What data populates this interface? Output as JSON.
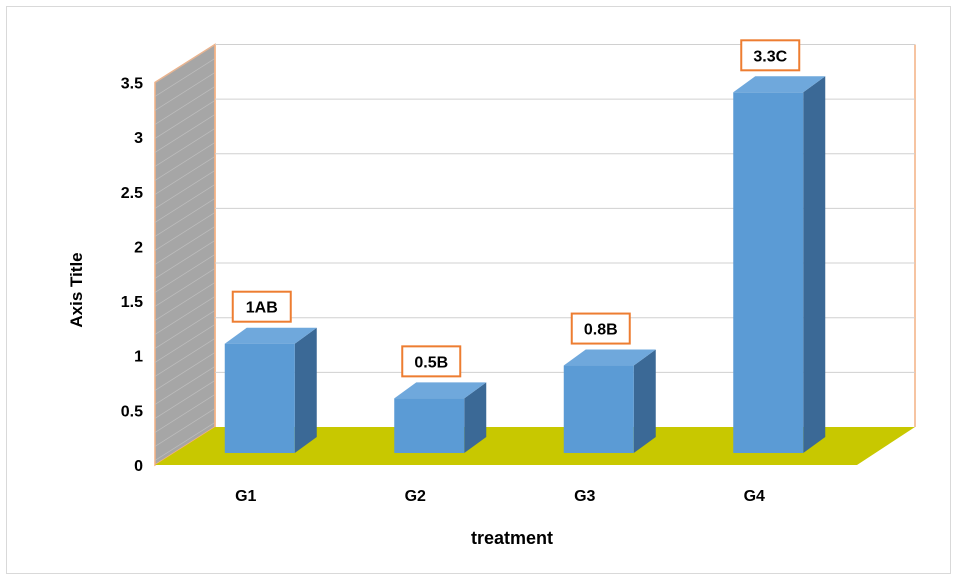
{
  "chart_data": {
    "type": "bar",
    "title": "",
    "xlabel": "treatment",
    "ylabel": "Axis Title",
    "categories": [
      "G1",
      "G2",
      "G3",
      "G4"
    ],
    "values": [
      1,
      0.5,
      0.8,
      3.3
    ],
    "data_labels": [
      "1AB",
      "0.5B",
      "0.8B",
      "3.3C"
    ],
    "ylim": [
      0,
      3.5
    ],
    "yticks": [
      "0",
      "0.5",
      "1",
      "1.5",
      "2",
      "2.5",
      "3",
      "3.5"
    ],
    "grid": true,
    "legend": "none",
    "style": "3d-column"
  },
  "colors": {
    "bar_front": "#5b9bd5",
    "bar_side": "#3b6996",
    "bar_top": "#6fa8dc",
    "floor": "#c8c800",
    "side_wall": "#a6a6a6",
    "frame_edge": "#f4b183",
    "gridline": "#d0d0d0",
    "label_border": "#ed7d31",
    "text": "#000000"
  }
}
